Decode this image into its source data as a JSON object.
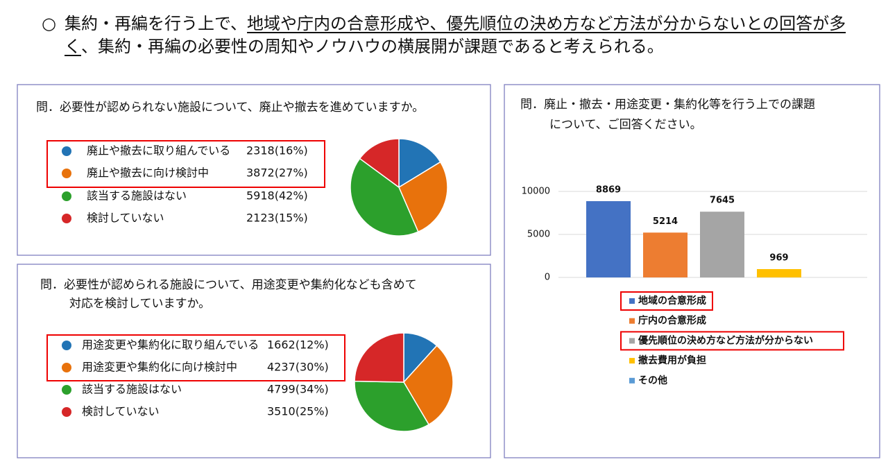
{
  "header": {
    "marker": "○",
    "segments": [
      {
        "text": "集約・再編を行う上で、"
      },
      {
        "text": "地域や庁内の合意形成や、優先順位の決め方など方法が分からないとの回答が多く",
        "underline": true
      },
      {
        "text": "、集約・再編の必要性の周知やノウハウの横展開が課題であると考えられる。"
      }
    ]
  },
  "chart_data": [
    {
      "type": "pie",
      "title": [
        "問．必要性が認められない施設について、廃止や撤去を進めていますか。"
      ],
      "categories": [
        "廃止や撤去に取り組んでいる",
        "廃止や撤去に向け検討中",
        "該当する施設はない",
        "検討していない"
      ],
      "values": [
        2318,
        3872,
        5918,
        2123
      ],
      "value_labels": [
        "2318(16%)",
        "3872(27%)",
        "5918(42%)",
        "2123(15%)"
      ],
      "colors": [
        "#2274b5",
        "#e8720c",
        "#2ca02c",
        "#d62728"
      ],
      "highlighted": [
        0,
        1
      ]
    },
    {
      "type": "pie",
      "title": [
        "問．必要性が認められる施設について、用途変更や集約化なども含めて",
        "対応を検討していますか。"
      ],
      "categories": [
        "用途変更や集約化に取り組んでいる",
        "用途変更や集約化に向け検討中",
        "該当する施設はない",
        "検討していない"
      ],
      "values": [
        1662,
        4237,
        4799,
        3510
      ],
      "value_labels": [
        "1662(12%)",
        "4237(30%)",
        "4799(34%)",
        "3510(25%)"
      ],
      "colors": [
        "#2274b5",
        "#e8720c",
        "#2ca02c",
        "#d62728"
      ],
      "highlighted": [
        0,
        1
      ]
    },
    {
      "type": "bar",
      "title": [
        "問．廃止・撤去・用途変更・集約化等を行う上での課題",
        "について、ご回答ください。"
      ],
      "series": [
        {
          "name": "地域の合意形成",
          "color": "#4472c4",
          "values": [
            8869
          ]
        },
        {
          "name": "庁内の合意形成",
          "color": "#ed7d31",
          "values": [
            5214
          ]
        },
        {
          "name": "優先順位の決め方など方法が分からない",
          "color": "#a5a5a5",
          "values": [
            7645
          ]
        },
        {
          "name": "撤去費用が負担",
          "color": "#ffc000",
          "values": [
            969
          ]
        },
        {
          "name": "その他",
          "color": "#5b9bd5",
          "values": [
            null
          ]
        }
      ],
      "ylim": [
        0,
        10000
      ],
      "yticks": [
        0,
        5000,
        10000
      ],
      "grid": true,
      "data_labels": true,
      "highlighted": [
        0,
        2
      ]
    }
  ]
}
